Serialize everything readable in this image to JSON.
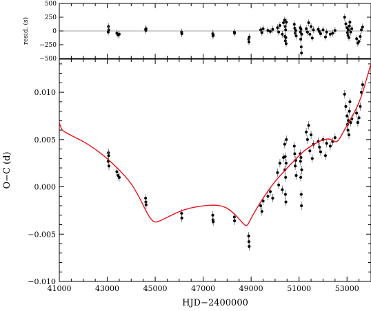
{
  "chart_data": [
    {
      "type": "scatter",
      "panel": "residuals",
      "ylabel": "resid. (s)",
      "xlim": [
        41000,
        54000
      ],
      "ylim": [
        -500,
        500
      ],
      "yticks": [
        500,
        250,
        0,
        -250,
        -500
      ],
      "ytick_labels": [
        "500",
        "250",
        "0",
        "−250",
        "−500"
      ],
      "zero_line": true,
      "zero_line_color": "#a0a0a0",
      "point_color": "#000000",
      "points": [
        {
          "x": 43050,
          "y": 80
        },
        {
          "x": 43060,
          "y": 20
        },
        {
          "x": 43040,
          "y": -20
        },
        {
          "x": 43400,
          "y": -40
        },
        {
          "x": 43450,
          "y": -70
        },
        {
          "x": 43500,
          "y": -60
        },
        {
          "x": 44600,
          "y": 30
        },
        {
          "x": 44610,
          "y": 10
        },
        {
          "x": 44620,
          "y": 40
        },
        {
          "x": 46100,
          "y": -20
        },
        {
          "x": 46110,
          "y": -50
        },
        {
          "x": 47400,
          "y": -50
        },
        {
          "x": 47410,
          "y": -90
        },
        {
          "x": 47420,
          "y": -70
        },
        {
          "x": 48300,
          "y": -20
        },
        {
          "x": 48310,
          "y": -40
        },
        {
          "x": 48900,
          "y": -150
        },
        {
          "x": 48910,
          "y": -200
        },
        {
          "x": 48920,
          "y": -110
        },
        {
          "x": 49400,
          "y": 20
        },
        {
          "x": 49450,
          "y": -30
        },
        {
          "x": 49500,
          "y": 40
        },
        {
          "x": 49700,
          "y": 10
        },
        {
          "x": 49800,
          "y": -10
        },
        {
          "x": 49900,
          "y": 30
        },
        {
          "x": 50100,
          "y": 60
        },
        {
          "x": 50150,
          "y": -20
        },
        {
          "x": 50200,
          "y": 100
        },
        {
          "x": 50300,
          "y": -60
        },
        {
          "x": 50350,
          "y": 150
        },
        {
          "x": 50400,
          "y": 200
        },
        {
          "x": 50410,
          "y": -100
        },
        {
          "x": 50420,
          "y": 80
        },
        {
          "x": 50430,
          "y": -180
        },
        {
          "x": 50440,
          "y": 20
        },
        {
          "x": 50450,
          "y": -120
        },
        {
          "x": 50460,
          "y": -230
        },
        {
          "x": 50470,
          "y": 160
        },
        {
          "x": 50800,
          "y": 120
        },
        {
          "x": 50820,
          "y": 50
        },
        {
          "x": 50840,
          "y": -40
        },
        {
          "x": 50860,
          "y": 10
        },
        {
          "x": 50880,
          "y": -90
        },
        {
          "x": 51050,
          "y": 60
        },
        {
          "x": 51060,
          "y": -20
        },
        {
          "x": 51070,
          "y": -150
        },
        {
          "x": 51080,
          "y": 30
        },
        {
          "x": 51090,
          "y": -290
        },
        {
          "x": 51100,
          "y": -400
        },
        {
          "x": 51110,
          "y": -60
        },
        {
          "x": 51300,
          "y": 40
        },
        {
          "x": 51350,
          "y": -20
        },
        {
          "x": 51400,
          "y": 150
        },
        {
          "x": 51450,
          "y": -60
        },
        {
          "x": 51500,
          "y": 80
        },
        {
          "x": 51550,
          "y": -130
        },
        {
          "x": 51600,
          "y": 20
        },
        {
          "x": 51800,
          "y": 30
        },
        {
          "x": 51850,
          "y": -10
        },
        {
          "x": 51900,
          "y": -50
        },
        {
          "x": 52000,
          "y": 20
        },
        {
          "x": 52100,
          "y": -110
        },
        {
          "x": 52150,
          "y": -20
        },
        {
          "x": 52300,
          "y": -60
        },
        {
          "x": 52400,
          "y": -40
        },
        {
          "x": 52500,
          "y": 10
        },
        {
          "x": 52900,
          "y": 250
        },
        {
          "x": 52950,
          "y": 130
        },
        {
          "x": 53000,
          "y": 60
        },
        {
          "x": 53020,
          "y": -30
        },
        {
          "x": 53040,
          "y": -80
        },
        {
          "x": 53060,
          "y": 20
        },
        {
          "x": 53080,
          "y": -120
        },
        {
          "x": 53100,
          "y": 90
        },
        {
          "x": 53120,
          "y": 160
        },
        {
          "x": 53150,
          "y": -20
        },
        {
          "x": 53200,
          "y": 40
        },
        {
          "x": 53400,
          "y": -140
        },
        {
          "x": 53450,
          "y": -220
        },
        {
          "x": 53500,
          "y": -190
        },
        {
          "x": 53550,
          "y": -100
        },
        {
          "x": 53600,
          "y": 20
        },
        {
          "x": 53650,
          "y": 70
        }
      ]
    },
    {
      "type": "scatter",
      "panel": "o-c",
      "xlabel": "HJD−2400000",
      "ylabel": "O−C (d)",
      "xlim": [
        41000,
        54000
      ],
      "ylim": [
        -0.01,
        0.0135
      ],
      "xticks": [
        41000,
        43000,
        45000,
        47000,
        49000,
        51000,
        53000
      ],
      "xtick_labels": [
        "41000",
        "43000",
        "45000",
        "47000",
        "49000",
        "51000",
        "53000"
      ],
      "yticks": [
        -0.01,
        -0.005,
        0.0,
        0.005,
        0.01
      ],
      "ytick_labels": [
        "−0.010",
        "−0.005",
        "0.000",
        "0.005",
        "0.010"
      ],
      "point_color": "#000000",
      "curve_color": "#e8101c",
      "model_curve": [
        [
          41000,
          0.0068
        ],
        [
          41100,
          0.006
        ],
        [
          41300,
          0.0057
        ],
        [
          41600,
          0.0053
        ],
        [
          42000,
          0.0048
        ],
        [
          42500,
          0.004
        ],
        [
          43000,
          0.003
        ],
        [
          43500,
          0.0018
        ],
        [
          44000,
          0.0004
        ],
        [
          44400,
          -0.0014
        ],
        [
          44700,
          -0.003
        ],
        [
          44950,
          -0.0038
        ],
        [
          45200,
          -0.0036
        ],
        [
          45600,
          -0.0031
        ],
        [
          46000,
          -0.0026
        ],
        [
          46500,
          -0.0022
        ],
        [
          47000,
          -0.002
        ],
        [
          47500,
          -0.0019
        ],
        [
          47900,
          -0.0021
        ],
        [
          48200,
          -0.0026
        ],
        [
          48500,
          -0.0034
        ],
        [
          48750,
          -0.0041
        ],
        [
          48850,
          -0.0041
        ],
        [
          49000,
          -0.0033
        ],
        [
          49300,
          -0.002
        ],
        [
          49600,
          -0.0008
        ],
        [
          50000,
          0.0006
        ],
        [
          50400,
          0.0017
        ],
        [
          50800,
          0.0028
        ],
        [
          51200,
          0.0038
        ],
        [
          51600,
          0.0045
        ],
        [
          52000,
          0.005
        ],
        [
          52300,
          0.0051
        ],
        [
          52500,
          0.0047
        ],
        [
          52650,
          0.0049
        ],
        [
          52800,
          0.0056
        ],
        [
          53000,
          0.0065
        ],
        [
          53300,
          0.0078
        ],
        [
          53600,
          0.0095
        ],
        [
          53800,
          0.0113
        ],
        [
          54000,
          0.013
        ]
      ],
      "points": [
        {
          "x": 43050,
          "y": 0.0036
        },
        {
          "x": 43060,
          "y": 0.0033
        },
        {
          "x": 43040,
          "y": 0.0027
        },
        {
          "x": 43070,
          "y": 0.0022
        },
        {
          "x": 43400,
          "y": 0.0016
        },
        {
          "x": 43450,
          "y": 0.0012
        },
        {
          "x": 43500,
          "y": 0.001
        },
        {
          "x": 44600,
          "y": -0.0012
        },
        {
          "x": 44610,
          "y": -0.0016
        },
        {
          "x": 44620,
          "y": -0.0019
        },
        {
          "x": 46100,
          "y": -0.0028
        },
        {
          "x": 46110,
          "y": -0.0033
        },
        {
          "x": 47400,
          "y": -0.003
        },
        {
          "x": 47410,
          "y": -0.0035
        },
        {
          "x": 47420,
          "y": -0.0037
        },
        {
          "x": 48300,
          "y": -0.0032
        },
        {
          "x": 48310,
          "y": -0.0036
        },
        {
          "x": 48900,
          "y": -0.0052
        },
        {
          "x": 48910,
          "y": -0.0058
        },
        {
          "x": 48920,
          "y": -0.0063
        },
        {
          "x": 49400,
          "y": -0.002
        },
        {
          "x": 49450,
          "y": -0.0026
        },
        {
          "x": 49500,
          "y": -0.0015
        },
        {
          "x": 49700,
          "y": -0.001
        },
        {
          "x": 49800,
          "y": -0.0005
        },
        {
          "x": 49900,
          "y": -0.0012
        },
        {
          "x": 50100,
          "y": 0.0015
        },
        {
          "x": 50150,
          "y": 0.0002
        },
        {
          "x": 50200,
          "y": 0.0025
        },
        {
          "x": 50300,
          "y": -0.0003
        },
        {
          "x": 50350,
          "y": 0.0031
        },
        {
          "x": 50400,
          "y": 0.0045
        },
        {
          "x": 50410,
          "y": 0.0018
        },
        {
          "x": 50420,
          "y": 0.0032
        },
        {
          "x": 50430,
          "y": -0.0008
        },
        {
          "x": 50440,
          "y": 0.001
        },
        {
          "x": 50450,
          "y": -0.0016
        },
        {
          "x": 50460,
          "y": 0.0025
        },
        {
          "x": 50470,
          "y": 0.005
        },
        {
          "x": 50800,
          "y": 0.0043
        },
        {
          "x": 50820,
          "y": 0.0035
        },
        {
          "x": 50840,
          "y": 0.0022
        },
        {
          "x": 50860,
          "y": 0.0028
        },
        {
          "x": 50880,
          "y": 0.0012
        },
        {
          "x": 51050,
          "y": 0.0035
        },
        {
          "x": 51060,
          "y": 0.0027
        },
        {
          "x": 51070,
          "y": 0.001
        },
        {
          "x": 51080,
          "y": 0.0031
        },
        {
          "x": 51090,
          "y": -0.0008
        },
        {
          "x": 51100,
          "y": -0.002
        },
        {
          "x": 51110,
          "y": 0.0018
        },
        {
          "x": 51300,
          "y": 0.0058
        },
        {
          "x": 51350,
          "y": 0.005
        },
        {
          "x": 51400,
          "y": 0.0065
        },
        {
          "x": 51450,
          "y": 0.0038
        },
        {
          "x": 51500,
          "y": 0.0055
        },
        {
          "x": 51550,
          "y": 0.003
        },
        {
          "x": 51600,
          "y": 0.0045
        },
        {
          "x": 51800,
          "y": 0.0048
        },
        {
          "x": 51850,
          "y": 0.0042
        },
        {
          "x": 51900,
          "y": 0.0037
        },
        {
          "x": 52000,
          "y": 0.005
        },
        {
          "x": 52100,
          "y": 0.0033
        },
        {
          "x": 52150,
          "y": 0.0046
        },
        {
          "x": 52300,
          "y": 0.0043
        },
        {
          "x": 52400,
          "y": 0.0048
        },
        {
          "x": 52500,
          "y": 0.0052
        },
        {
          "x": 52900,
          "y": 0.0098
        },
        {
          "x": 52950,
          "y": 0.0085
        },
        {
          "x": 53000,
          "y": 0.0075
        },
        {
          "x": 53020,
          "y": 0.0066
        },
        {
          "x": 53040,
          "y": 0.006
        },
        {
          "x": 53060,
          "y": 0.007
        },
        {
          "x": 53080,
          "y": 0.0055
        },
        {
          "x": 53100,
          "y": 0.008
        },
        {
          "x": 53120,
          "y": 0.009
        },
        {
          "x": 53150,
          "y": 0.0068
        },
        {
          "x": 53200,
          "y": 0.0072
        },
        {
          "x": 53400,
          "y": 0.0078
        },
        {
          "x": 53450,
          "y": 0.0068
        },
        {
          "x": 53500,
          "y": 0.0073
        },
        {
          "x": 53550,
          "y": 0.0085
        },
        {
          "x": 53600,
          "y": 0.01
        },
        {
          "x": 53650,
          "y": 0.0108
        }
      ]
    }
  ]
}
